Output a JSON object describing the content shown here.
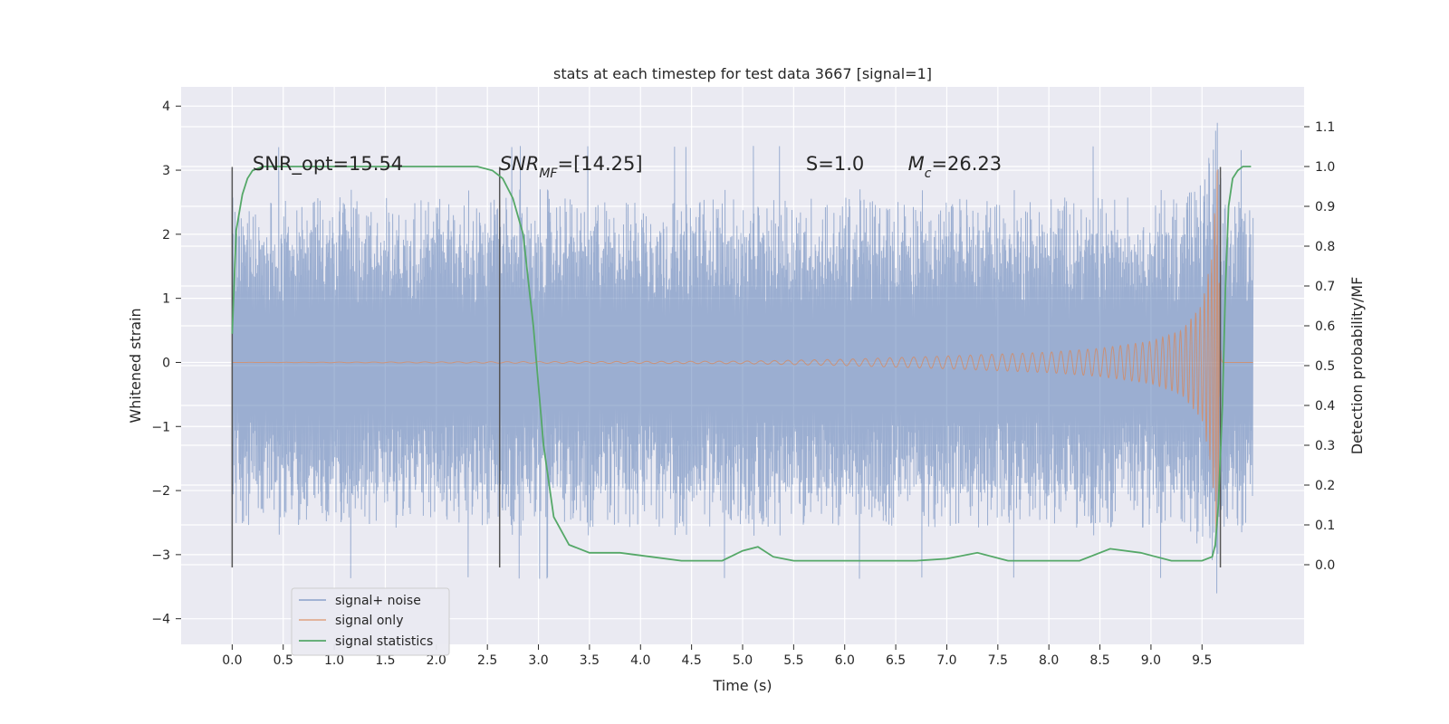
{
  "chart_data": {
    "type": "line",
    "title": "stats at each timestep for test data 3667 [signal=1]",
    "xlabel": "Time (s)",
    "ylabel": "Whitened strain",
    "y2label": "Detection probability/MF",
    "xlim": [
      -0.5,
      10.5
    ],
    "ylim": [
      -4.4,
      4.3
    ],
    "y2lim": [
      -0.2,
      1.2
    ],
    "x_ticks": [
      0.0,
      0.5,
      1.0,
      1.5,
      2.0,
      2.5,
      3.0,
      3.5,
      4.0,
      4.5,
      5.0,
      5.5,
      6.0,
      6.5,
      7.0,
      7.5,
      8.0,
      8.5,
      9.0,
      9.5
    ],
    "x_tick_labels": [
      "0.0",
      "0.5",
      "1.0",
      "1.5",
      "2.0",
      "2.5",
      "3.0",
      "3.5",
      "4.0",
      "4.5",
      "5.0",
      "5.5",
      "6.0",
      "6.5",
      "7.0",
      "7.5",
      "8.0",
      "8.5",
      "9.0",
      "9.5"
    ],
    "y_ticks": [
      -4,
      -3,
      -2,
      -1,
      0,
      1,
      2,
      3,
      4
    ],
    "y_tick_labels": [
      "−4",
      "−3",
      "−2",
      "−1",
      "0",
      "1",
      "2",
      "3",
      "4"
    ],
    "y2_ticks": [
      0.0,
      0.1,
      0.2,
      0.3,
      0.4,
      0.5,
      0.6,
      0.7,
      0.8,
      0.9,
      1.0,
      1.1
    ],
    "y2_tick_labels": [
      "0.0",
      "0.1",
      "0.2",
      "0.3",
      "0.4",
      "0.5",
      "0.6",
      "0.7",
      "0.8",
      "0.9",
      "1.0",
      "1.1"
    ],
    "grid": true,
    "legend_position": "lower-left",
    "annotations": [
      {
        "pre": "SNR_opt=15.54",
        "sub": "",
        "post": "",
        "x": 0.2,
        "y": 3.0
      },
      {
        "pre": "SNR",
        "sub": "MF",
        "post": "=[14.25]",
        "x": 2.62,
        "y": 3.0
      },
      {
        "pre": "S",
        "sub": "",
        "post": "=1.0",
        "x": 5.62,
        "y": 3.0
      },
      {
        "pre": "M",
        "sub": "c",
        "post": "=26.23",
        "x": 6.62,
        "y": 3.0
      }
    ],
    "vlines": [
      {
        "x": 0.0,
        "y_range": [
          -3.2,
          3.05
        ]
      },
      {
        "x": 2.62,
        "y_range": [
          -3.2,
          3.05
        ]
      },
      {
        "x": 9.68,
        "y_range": [
          -3.2,
          3.05
        ]
      }
    ],
    "series": [
      {
        "name": "signal+ noise",
        "color": "#4c72b0",
        "t_range": [
          0.0,
          10.0
        ],
        "noise_envelope": {
          "t": [
            0.0,
            9.2,
            9.5,
            9.6,
            9.65,
            9.7,
            10.0
          ],
          "high": [
            2.6,
            2.6,
            2.9,
            3.4,
            3.9,
            2.5,
            2.6
          ],
          "low": [
            -2.6,
            -2.6,
            -3.0,
            -3.5,
            -3.8,
            -2.6,
            -2.6
          ]
        }
      },
      {
        "name": "signal only",
        "color": "#dd8452",
        "t": [
          0.0,
          5.0,
          6.0,
          7.0,
          8.0,
          8.5,
          9.0,
          9.3,
          9.5,
          9.6,
          9.65,
          9.68,
          9.7,
          10.0
        ],
        "amplitude": [
          0.0,
          0.02,
          0.05,
          0.1,
          0.16,
          0.22,
          0.33,
          0.5,
          0.9,
          1.7,
          3.2,
          0.3,
          0.0,
          0.0
        ]
      },
      {
        "name": "signal statistics",
        "color": "#55a868",
        "x": [
          0.0,
          0.04,
          0.1,
          0.15,
          0.2,
          0.3,
          0.5,
          1.0,
          1.5,
          2.0,
          2.4,
          2.55,
          2.65,
          2.75,
          2.85,
          2.95,
          3.05,
          3.15,
          3.3,
          3.5,
          3.8,
          4.1,
          4.4,
          4.8,
          5.0,
          5.15,
          5.3,
          5.5,
          5.8,
          6.0,
          6.3,
          6.7,
          7.0,
          7.3,
          7.6,
          8.0,
          8.3,
          8.6,
          8.9,
          9.2,
          9.5,
          9.6,
          9.63,
          9.66,
          9.7,
          9.73,
          9.76,
          9.8,
          9.85,
          9.9,
          9.95,
          9.98
        ],
        "values": [
          0.58,
          0.84,
          0.93,
          0.97,
          0.99,
          1.0,
          1.0,
          1.0,
          1.0,
          1.0,
          1.0,
          0.99,
          0.97,
          0.92,
          0.83,
          0.6,
          0.3,
          0.12,
          0.05,
          0.03,
          0.03,
          0.02,
          0.01,
          0.01,
          0.035,
          0.045,
          0.02,
          0.01,
          0.01,
          0.01,
          0.01,
          0.01,
          0.015,
          0.03,
          0.01,
          0.01,
          0.01,
          0.04,
          0.03,
          0.01,
          0.01,
          0.02,
          0.05,
          0.15,
          0.4,
          0.7,
          0.9,
          0.97,
          0.99,
          1.0,
          1.0,
          1.0
        ]
      }
    ]
  }
}
